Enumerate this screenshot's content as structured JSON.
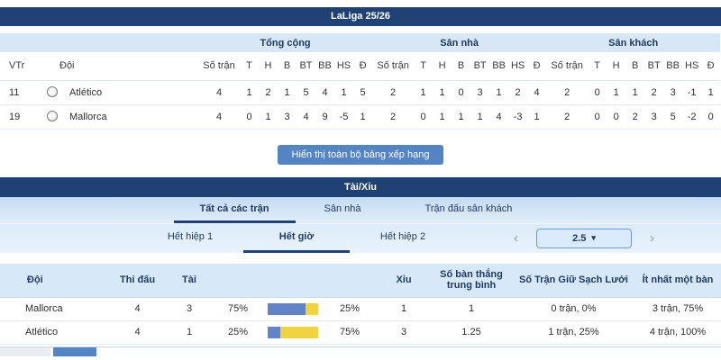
{
  "colors": {
    "navy_header": "#1f4173",
    "band_blue": "#d8e7f6",
    "bar_over_blue": "#6383c6",
    "bar_under_yellow": "#f0d341",
    "button_blue": "#5584c2",
    "active_tab_underline": "#1f4173"
  },
  "league_table": {
    "title": "LaLiga 25/26",
    "group_headers": [
      "Tổng cộng",
      "Sân nhà",
      "Sân khách"
    ],
    "rank_header": "VTr",
    "team_header": "Đội",
    "matches_header": "Số trận",
    "stat_headers": [
      "T",
      "H",
      "B",
      "BT",
      "BB",
      "HS",
      "Đ"
    ],
    "rows": [
      {
        "rank": "11",
        "team": "Atlético",
        "total": {
          "matches": "4",
          "stats": [
            "1",
            "2",
            "1",
            "5",
            "4",
            "1",
            "5"
          ]
        },
        "home": {
          "matches": "2",
          "stats": [
            "1",
            "1",
            "0",
            "3",
            "1",
            "2",
            "4"
          ]
        },
        "away": {
          "matches": "2",
          "stats": [
            "0",
            "1",
            "1",
            "2",
            "3",
            "-1",
            "1"
          ]
        }
      },
      {
        "rank": "19",
        "team": "Mallorca",
        "total": {
          "matches": "4",
          "stats": [
            "0",
            "1",
            "3",
            "4",
            "9",
            "-5",
            "1"
          ]
        },
        "home": {
          "matches": "2",
          "stats": [
            "0",
            "1",
            "1",
            "1",
            "4",
            "-3",
            "1"
          ]
        },
        "away": {
          "matches": "2",
          "stats": [
            "0",
            "0",
            "2",
            "3",
            "5",
            "-2",
            "0"
          ]
        }
      }
    ],
    "show_all_button": "Hiển thị toàn bộ bảng xếp hạng"
  },
  "over_under": {
    "title": "Tài/Xỉu",
    "scope_tabs": [
      {
        "label": "Tất cả các trận"
      },
      {
        "label": "Sân nhà"
      },
      {
        "label": "Trận đấu sân khách"
      }
    ],
    "period_tabs": [
      {
        "label": "Hết hiệp 1"
      },
      {
        "label": "Hết giờ"
      },
      {
        "label": "Hết hiệp 2"
      }
    ],
    "line_selector": {
      "prev_icon": "‹",
      "value": "2.5",
      "caret_icon": "▾",
      "next_icon": "›"
    },
    "headers": {
      "team": "Đội",
      "played": "Thi đấu",
      "over": "Tài",
      "under": "Xỉu",
      "avg_goals": "Số bàn thắng trung bình",
      "clean_sheets": "Số Trận Giữ Sạch Lưới",
      "at_least_one_goal": "Ít nhất một bàn"
    },
    "rows": [
      {
        "team": "Mallorca",
        "played": "4",
        "over": "3",
        "over_pct": "75%",
        "over_num": 75,
        "under_num": 25,
        "under_pct": "25%",
        "under": "1",
        "avg_goals": "1",
        "clean_sheets": "0 trận, 0%",
        "at_least_one_goal": "3 trận, 75%"
      },
      {
        "team": "Atlético",
        "played": "4",
        "over": "1",
        "over_pct": "25%",
        "over_num": 25,
        "under_num": 75,
        "under_pct": "75%",
        "under": "3",
        "avg_goals": "1.25",
        "clean_sheets": "1 trận, 25%",
        "at_least_one_goal": "4 trận, 100%"
      }
    ]
  }
}
